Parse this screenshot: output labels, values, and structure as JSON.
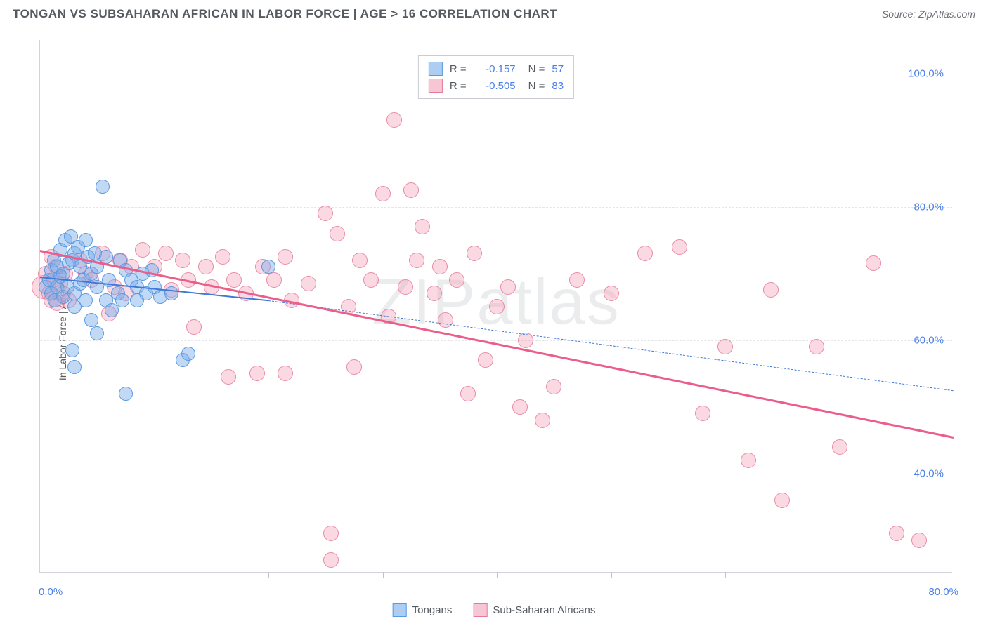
{
  "header": {
    "title": "TONGAN VS SUBSAHARAN AFRICAN IN LABOR FORCE | AGE > 16 CORRELATION CHART",
    "source_prefix": "Source: ",
    "source_name": "ZipAtlas.com"
  },
  "ylabel": "In Labor Force | Age > 16",
  "watermark": "ZIPatlas",
  "axes": {
    "x_min": 0.0,
    "x_max": 80.0,
    "y_min": 25.0,
    "y_max": 105.0,
    "x_tick_left": "0.0%",
    "x_tick_right": "80.0%",
    "x_minor_ticks": [
      10,
      20,
      30,
      40,
      50,
      60,
      70
    ],
    "y_ticks": [
      {
        "v": 40.0,
        "label": "40.0%"
      },
      {
        "v": 60.0,
        "label": "60.0%"
      },
      {
        "v": 80.0,
        "label": "80.0%"
      },
      {
        "v": 100.0,
        "label": "100.0%"
      }
    ],
    "grid_color": "#e4e6ea",
    "axis_color": "#d0d3d8",
    "tick_label_color": "#4a80e8"
  },
  "series": {
    "tongans": {
      "label": "Tongans",
      "fill": "rgba(120,170,235,0.45)",
      "stroke": "#5a9be0",
      "swatch_fill": "#aecdf2",
      "swatch_stroke": "#5a9be0",
      "R": "-0.157",
      "N": "57",
      "marker_radius": 10,
      "marker_radius_big": 15,
      "trend": {
        "x1": 0,
        "y1": 69.5,
        "x2": 20,
        "y2": 66.0,
        "x2_dash": 80,
        "y2_dash": 52.5,
        "color": "#3f78d8",
        "width": 2
      },
      "points": [
        [
          0.5,
          68
        ],
        [
          0.8,
          69
        ],
        [
          1.0,
          67
        ],
        [
          1.0,
          70.5
        ],
        [
          1.2,
          72
        ],
        [
          1.3,
          66
        ],
        [
          1.5,
          71
        ],
        [
          1.5,
          68
        ],
        [
          1.8,
          69.5
        ],
        [
          1.8,
          73.5
        ],
        [
          2.0,
          70
        ],
        [
          2.0,
          66.5
        ],
        [
          2.2,
          75
        ],
        [
          2.4,
          68
        ],
        [
          2.5,
          71.5
        ],
        [
          2.7,
          75.5
        ],
        [
          2.8,
          72
        ],
        [
          3.0,
          67
        ],
        [
          3.0,
          73
        ],
        [
          3.0,
          65
        ],
        [
          3.3,
          74
        ],
        [
          3.5,
          71
        ],
        [
          3.5,
          68.5
        ],
        [
          3.8,
          69
        ],
        [
          4.0,
          75
        ],
        [
          4.0,
          66
        ],
        [
          4.2,
          72.5
        ],
        [
          4.5,
          70
        ],
        [
          4.5,
          63
        ],
        [
          4.8,
          73
        ],
        [
          5.0,
          68
        ],
        [
          5.0,
          71
        ],
        [
          5.5,
          83
        ],
        [
          5.8,
          66
        ],
        [
          5.8,
          72.5
        ],
        [
          6.0,
          69
        ],
        [
          6.3,
          64.5
        ],
        [
          6.8,
          67
        ],
        [
          7.0,
          72
        ],
        [
          7.2,
          66
        ],
        [
          7.5,
          70.5
        ],
        [
          8.0,
          69
        ],
        [
          8.5,
          68
        ],
        [
          8.5,
          66
        ],
        [
          9.0,
          70
        ],
        [
          9.3,
          67
        ],
        [
          9.8,
          70.5
        ],
        [
          10.0,
          68
        ],
        [
          10.5,
          66.5
        ],
        [
          11.5,
          67
        ],
        [
          12.5,
          57
        ],
        [
          3.0,
          56
        ],
        [
          2.8,
          58.5
        ],
        [
          5.0,
          61
        ],
        [
          7.5,
          52
        ],
        [
          20.0,
          71
        ],
        [
          13.0,
          58
        ]
      ]
    },
    "subsaharan": {
      "label": "Sub-Saharan Africans",
      "fill": "rgba(244,160,185,0.40)",
      "stroke": "#e88ba8",
      "swatch_fill": "#f6c6d5",
      "swatch_stroke": "#e67a9a",
      "R": "-0.505",
      "N": "83",
      "marker_radius": 11,
      "marker_radius_big": 17,
      "trend": {
        "x1": 0,
        "y1": 73.5,
        "x2": 80,
        "y2": 45.5,
        "color": "#ea5e89",
        "width": 2.5
      },
      "points": [
        [
          0.3,
          68,
          17
        ],
        [
          0.5,
          70
        ],
        [
          0.8,
          67
        ],
        [
          1.0,
          72.5
        ],
        [
          1.0,
          66
        ],
        [
          1.2,
          69
        ],
        [
          1.4,
          71
        ],
        [
          1.5,
          65.5
        ],
        [
          1.8,
          68.5
        ],
        [
          2.0,
          67
        ],
        [
          2.2,
          70
        ],
        [
          2.5,
          66
        ],
        [
          3.5,
          72
        ],
        [
          4.0,
          70
        ],
        [
          4.5,
          69
        ],
        [
          5.5,
          73
        ],
        [
          6.5,
          68
        ],
        [
          7.0,
          72
        ],
        [
          7.5,
          67
        ],
        [
          8.0,
          71
        ],
        [
          9.0,
          73.5
        ],
        [
          10.0,
          71
        ],
        [
          11.0,
          73
        ],
        [
          11.5,
          67.5
        ],
        [
          12.5,
          72
        ],
        [
          13.0,
          69
        ],
        [
          14.5,
          71
        ],
        [
          15.0,
          68
        ],
        [
          16.0,
          72.5
        ],
        [
          17.0,
          69
        ],
        [
          18.0,
          67
        ],
        [
          19.5,
          71
        ],
        [
          20.5,
          69
        ],
        [
          21.5,
          72.5
        ],
        [
          22.0,
          66
        ],
        [
          23.5,
          68.5
        ],
        [
          25.0,
          79
        ],
        [
          26.0,
          76
        ],
        [
          27.0,
          65
        ],
        [
          27.5,
          56
        ],
        [
          28.0,
          72
        ],
        [
          29.0,
          69
        ],
        [
          30.0,
          82
        ],
        [
          30.5,
          63.5
        ],
        [
          31.0,
          93
        ],
        [
          32.0,
          68
        ],
        [
          32.5,
          82.5
        ],
        [
          33.0,
          72
        ],
        [
          33.5,
          77
        ],
        [
          34.5,
          67
        ],
        [
          35.0,
          71
        ],
        [
          35.5,
          63
        ],
        [
          36.5,
          69
        ],
        [
          37.5,
          52
        ],
        [
          38.0,
          73
        ],
        [
          39.0,
          57
        ],
        [
          40.0,
          65
        ],
        [
          41.0,
          68
        ],
        [
          42.0,
          50
        ],
        [
          42.5,
          60
        ],
        [
          44.0,
          48
        ],
        [
          45.0,
          53
        ],
        [
          47.0,
          69
        ],
        [
          50.0,
          67
        ],
        [
          53.0,
          73
        ],
        [
          56.0,
          74
        ],
        [
          58.0,
          49
        ],
        [
          60.0,
          59
        ],
        [
          62.0,
          42
        ],
        [
          64.0,
          67.5
        ],
        [
          65.0,
          36
        ],
        [
          68.0,
          59
        ],
        [
          70.0,
          44
        ],
        [
          73.0,
          71.5
        ],
        [
          75.0,
          31
        ],
        [
          77.0,
          30
        ],
        [
          25.5,
          31
        ],
        [
          25.5,
          27
        ],
        [
          19.0,
          55
        ],
        [
          21.5,
          55
        ],
        [
          16.5,
          54.5
        ],
        [
          6.0,
          64
        ],
        [
          13.5,
          62
        ]
      ]
    }
  },
  "legend_top_titles": {
    "R": "R =",
    "N": "N ="
  }
}
